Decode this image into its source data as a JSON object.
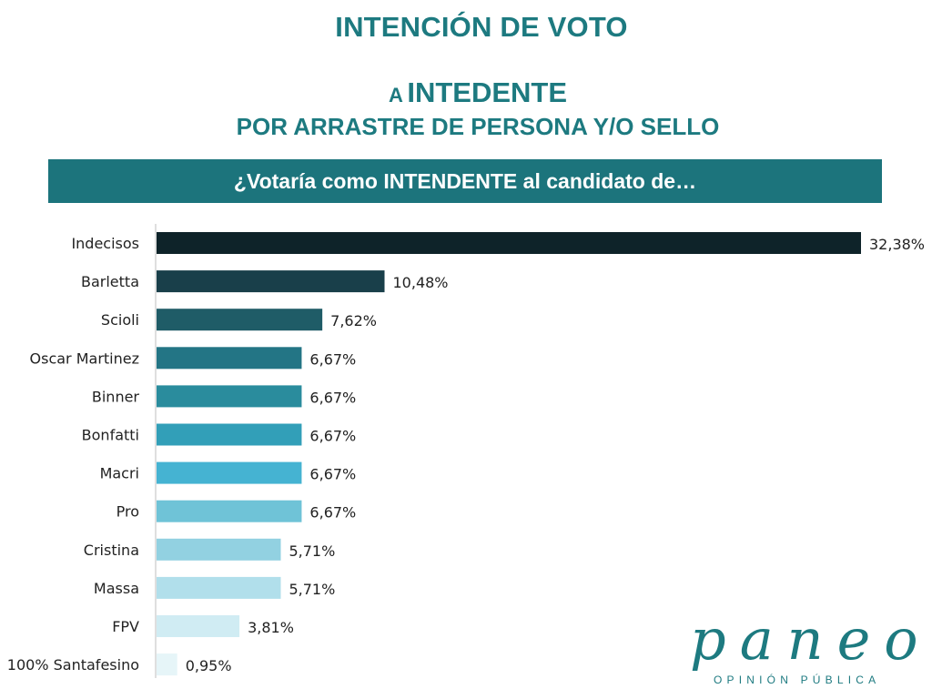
{
  "header": {
    "title": "INTENCIÓN DE VOTO",
    "subtitle_prefix": "A",
    "subtitle_main": "INTEDENTE",
    "subtitle_line2": "POR ARRASTRE DE PERSONA Y/O SELLO"
  },
  "question": "¿Votaría como INTENDENTE al candidato de…",
  "logo": {
    "word": "paneo",
    "tagline": "OPINIÓN PÚBLICA"
  },
  "chart_data": {
    "type": "bar",
    "orientation": "horizontal",
    "categories": [
      "Indecisos",
      "Barletta",
      "Scioli",
      "Oscar Martinez",
      "Binner",
      "Bonfatti",
      "Macri",
      "Pro",
      "Cristina",
      "Massa",
      "FPV",
      "100% Santafesino"
    ],
    "values": [
      32.38,
      10.48,
      7.62,
      6.67,
      6.67,
      6.67,
      6.67,
      6.67,
      5.71,
      5.71,
      3.81,
      0.95
    ],
    "value_labels": [
      "32,38%",
      "10,48%",
      "7,62%",
      "6,67%",
      "6,67%",
      "6,67%",
      "6,67%",
      "6,67%",
      "5,71%",
      "5,71%",
      "3,81%",
      "0,95%"
    ],
    "bar_colors": [
      "#0e2329",
      "#193f4a",
      "#1f5c67",
      "#237585",
      "#2a8c9d",
      "#329fb8",
      "#45b3d2",
      "#6fc3d7",
      "#92d1e1",
      "#b1dfeb",
      "#d0ecf3",
      "#e6f5f8"
    ],
    "xlim": [
      0,
      32.38
    ],
    "grid": false,
    "legend": "none"
  }
}
